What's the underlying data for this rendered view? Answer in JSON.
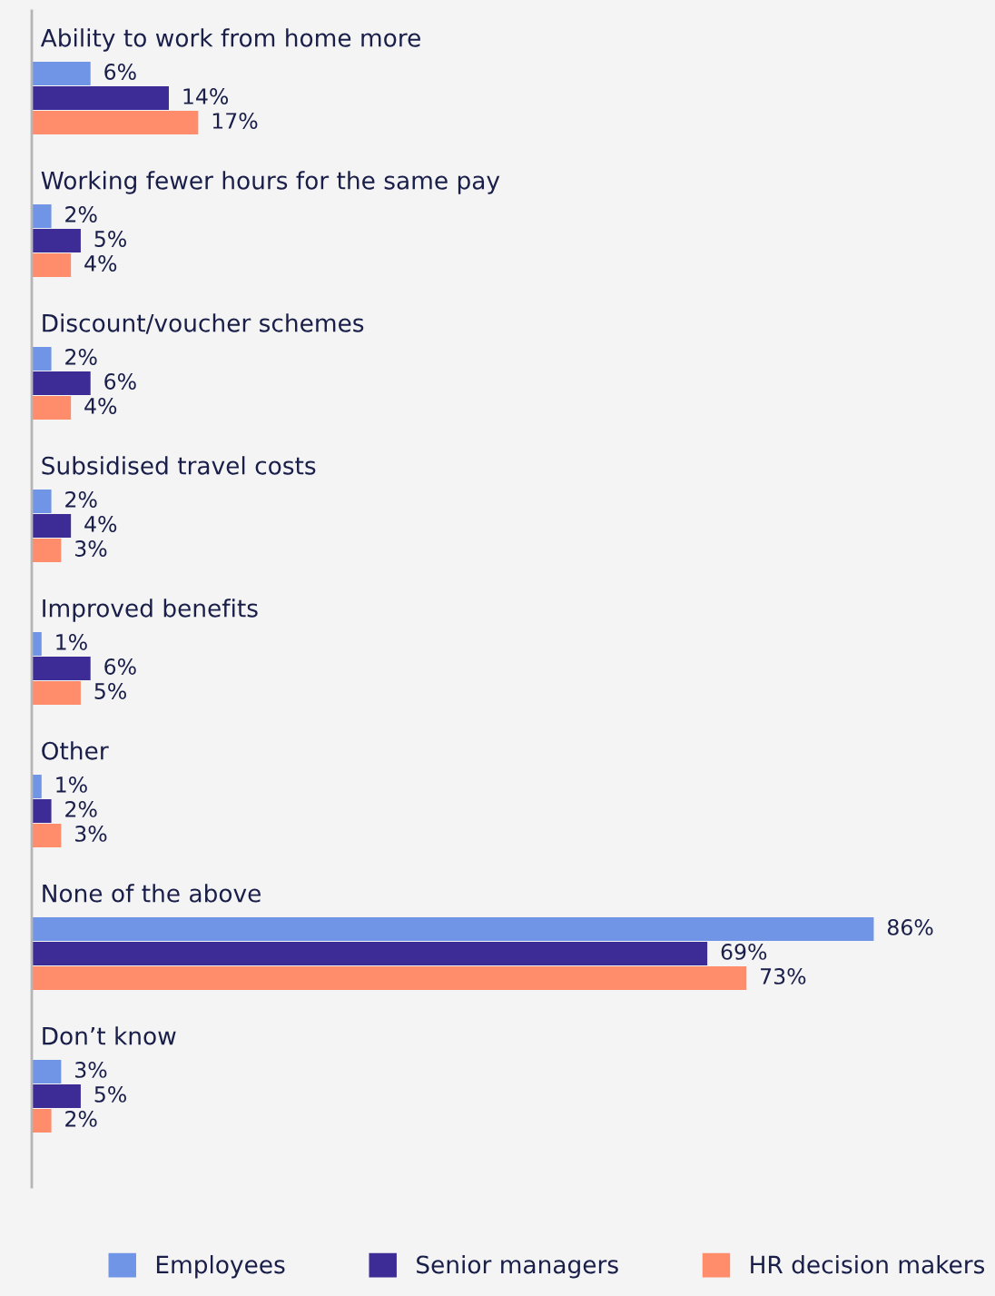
{
  "chart_data": {
    "type": "bar",
    "orientation": "horizontal",
    "categories": [
      "Ability to work from home more",
      "Working fewer hours for the same pay",
      "Discount/voucher schemes",
      "Subsidised travel costs",
      "Improved benefits",
      "Other",
      "None of the above",
      "Don’t know"
    ],
    "series": [
      {
        "name": "Employees",
        "color": "#7094e6",
        "values": [
          6,
          2,
          2,
          2,
          1,
          1,
          86,
          3
        ],
        "value_labels": [
          "6%",
          "2%",
          "2%",
          "2%",
          "1%",
          "1%",
          "86%",
          "3%"
        ]
      },
      {
        "name": "Senior managers",
        "color": "#3d2b96",
        "values": [
          14,
          5,
          6,
          4,
          6,
          2,
          69,
          5
        ],
        "value_labels": [
          "14%",
          "5%",
          "6%",
          "4%",
          "6%",
          "2%",
          "69%",
          "5%"
        ]
      },
      {
        "name": "HR decision makers",
        "color": "#ff8c6b",
        "values": [
          17,
          4,
          4,
          3,
          5,
          3,
          73,
          2
        ],
        "value_labels": [
          "17%",
          "4%",
          "4%",
          "3%",
          "5%",
          "3%",
          "73%",
          "2%"
        ]
      }
    ],
    "legend": "bottom"
  }
}
